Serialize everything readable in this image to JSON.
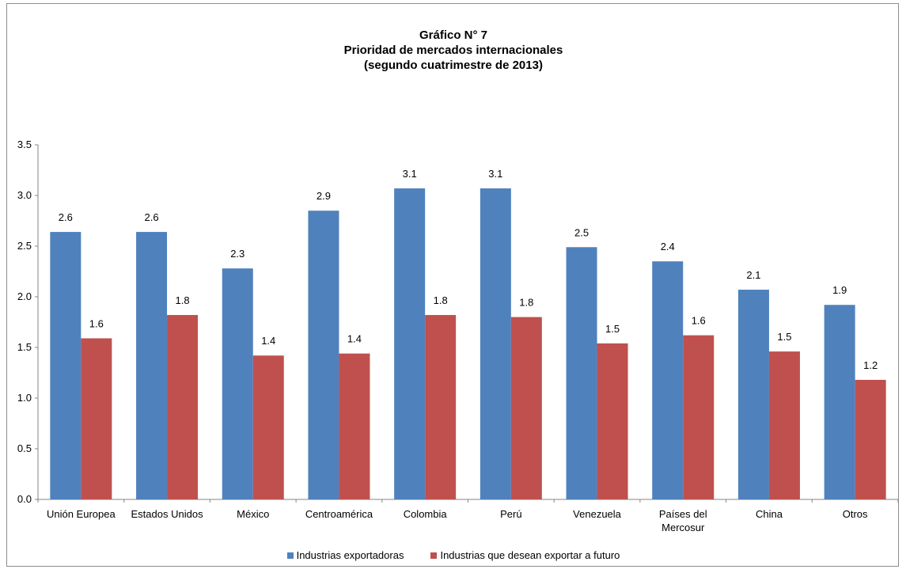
{
  "chart_data": {
    "type": "bar",
    "title": [
      "Gráfico N° 7",
      "Prioridad de mercados internacionales",
      "(segundo cuatrimestre de 2013)"
    ],
    "categories": [
      [
        "Unión Europea"
      ],
      [
        "Estados Unidos"
      ],
      [
        "México"
      ],
      [
        "Centroamérica"
      ],
      [
        "Colombia"
      ],
      [
        "Perú"
      ],
      [
        "Venezuela"
      ],
      [
        "Países del",
        "Mercosur"
      ],
      [
        "China"
      ],
      [
        "Otros"
      ]
    ],
    "series": [
      {
        "name": "Industrias exportadoras",
        "color": "#4f81bd",
        "values": [
          2.64,
          2.64,
          2.28,
          2.85,
          3.07,
          3.07,
          2.49,
          2.35,
          2.07,
          1.92
        ],
        "labels": [
          "2.6",
          "2.6",
          "2.3",
          "2.9",
          "3.1",
          "3.1",
          "2.5",
          "2.4",
          "2.1",
          "1.9"
        ]
      },
      {
        "name": "Industrias que desean exportar a futuro",
        "color": "#c0504d",
        "values": [
          1.59,
          1.82,
          1.42,
          1.44,
          1.82,
          1.8,
          1.54,
          1.62,
          1.46,
          1.18
        ],
        "labels": [
          "1.6",
          "1.8",
          "1.4",
          "1.4",
          "1.8",
          "1.8",
          "1.5",
          "1.6",
          "1.5",
          "1.2"
        ]
      }
    ],
    "yticks": [
      "0.0",
      "0.5",
      "1.0",
      "1.5",
      "2.0",
      "2.5",
      "3.0",
      "3.5"
    ],
    "ylim": [
      0,
      3.5
    ],
    "grid": false,
    "legend_position": "bottom"
  }
}
